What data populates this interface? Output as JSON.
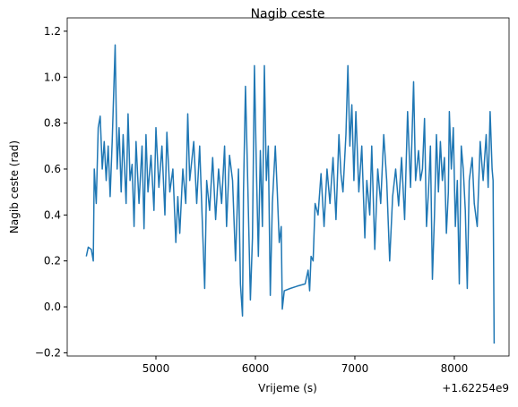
{
  "chart_data": {
    "type": "line",
    "title": "Nagib ceste",
    "x_label": "Vrijeme (s)",
    "y_label": "Nagib ceste (rad)",
    "x_offset": "+1.62254e9",
    "x": [
      4300,
      4320,
      4350,
      4370,
      4380,
      4400,
      4420,
      4440,
      4460,
      4480,
      4500,
      4520,
      4540,
      4560,
      4590,
      4610,
      4630,
      4650,
      4670,
      4700,
      4720,
      4740,
      4760,
      4780,
      4800,
      4830,
      4860,
      4880,
      4900,
      4920,
      4950,
      4980,
      5000,
      5030,
      5060,
      5090,
      5110,
      5140,
      5170,
      5200,
      5220,
      5240,
      5270,
      5300,
      5320,
      5340,
      5380,
      5410,
      5440,
      5470,
      5490,
      5510,
      5540,
      5570,
      5600,
      5630,
      5660,
      5690,
      5710,
      5740,
      5770,
      5800,
      5830,
      5850,
      5870,
      5880,
      5900,
      5920,
      5950,
      5970,
      5990,
      6010,
      6030,
      6050,
      6070,
      6090,
      6110,
      6130,
      6150,
      6170,
      6200,
      6220,
      6240,
      6260,
      6270,
      6290,
      6350,
      6420,
      6500,
      6530,
      6545,
      6560,
      6580,
      6600,
      6630,
      6660,
      6690,
      6720,
      6750,
      6780,
      6810,
      6840,
      6860,
      6880,
      6910,
      6930,
      6950,
      6970,
      6990,
      7010,
      7040,
      7070,
      7100,
      7120,
      7150,
      7170,
      7200,
      7230,
      7260,
      7290,
      7320,
      7350,
      7380,
      7410,
      7440,
      7470,
      7500,
      7530,
      7560,
      7590,
      7610,
      7640,
      7660,
      7680,
      7700,
      7720,
      7740,
      7760,
      7780,
      7800,
      7820,
      7840,
      7860,
      7880,
      7900,
      7920,
      7940,
      7950,
      7970,
      7990,
      8010,
      8030,
      8050,
      8070,
      8090,
      8110,
      8130,
      8150,
      8180,
      8200,
      8230,
      8260,
      8290,
      8320,
      8340,
      8360,
      8380,
      8390,
      8400
    ],
    "series": [
      {
        "name": "Nagib ceste",
        "color": "#1f77b4",
        "values": [
          0.22,
          0.26,
          0.25,
          0.2,
          0.6,
          0.45,
          0.78,
          0.83,
          0.6,
          0.72,
          0.55,
          0.7,
          0.48,
          0.72,
          1.14,
          0.6,
          0.78,
          0.5,
          0.75,
          0.45,
          0.84,
          0.55,
          0.62,
          0.35,
          0.72,
          0.45,
          0.7,
          0.34,
          0.75,
          0.5,
          0.66,
          0.42,
          0.78,
          0.52,
          0.7,
          0.4,
          0.76,
          0.5,
          0.6,
          0.28,
          0.48,
          0.32,
          0.6,
          0.45,
          0.84,
          0.55,
          0.72,
          0.45,
          0.7,
          0.32,
          0.08,
          0.55,
          0.42,
          0.65,
          0.38,
          0.6,
          0.45,
          0.7,
          0.35,
          0.66,
          0.55,
          0.2,
          0.6,
          0.1,
          -0.04,
          0.5,
          0.96,
          0.6,
          0.03,
          0.3,
          1.05,
          0.6,
          0.22,
          0.68,
          0.35,
          1.05,
          0.55,
          0.7,
          0.05,
          0.45,
          0.7,
          0.5,
          0.28,
          0.35,
          -0.01,
          0.07,
          0.08,
          0.09,
          0.1,
          0.16,
          0.07,
          0.22,
          0.2,
          0.45,
          0.4,
          0.58,
          0.35,
          0.6,
          0.45,
          0.65,
          0.38,
          0.75,
          0.58,
          0.5,
          0.75,
          1.05,
          0.7,
          0.88,
          0.55,
          0.85,
          0.5,
          0.7,
          0.3,
          0.55,
          0.4,
          0.7,
          0.25,
          0.6,
          0.45,
          0.75,
          0.55,
          0.2,
          0.48,
          0.6,
          0.44,
          0.65,
          0.38,
          0.85,
          0.52,
          0.98,
          0.55,
          0.68,
          0.55,
          0.6,
          0.82,
          0.35,
          0.5,
          0.7,
          0.12,
          0.4,
          0.75,
          0.5,
          0.72,
          0.55,
          0.65,
          0.32,
          0.5,
          0.85,
          0.6,
          0.78,
          0.35,
          0.55,
          0.1,
          0.7,
          0.6,
          0.42,
          0.08,
          0.55,
          0.65,
          0.45,
          0.35,
          0.72,
          0.55,
          0.75,
          0.52,
          0.85,
          0.6,
          0.55,
          -0.16
        ]
      }
    ],
    "xlim": [
      4108,
      8550
    ],
    "xticks": [
      5000,
      6000,
      7000,
      8000
    ],
    "ylim": [
      -0.214,
      1.258
    ],
    "yticks": [
      {
        "value": -0.2,
        "label": "−0.2"
      },
      {
        "value": 0,
        "label": "0.0"
      },
      0.2,
      0.4,
      0.6,
      0.8,
      {
        "value": 1.0,
        "label": "1.0"
      },
      1.2
    ]
  }
}
